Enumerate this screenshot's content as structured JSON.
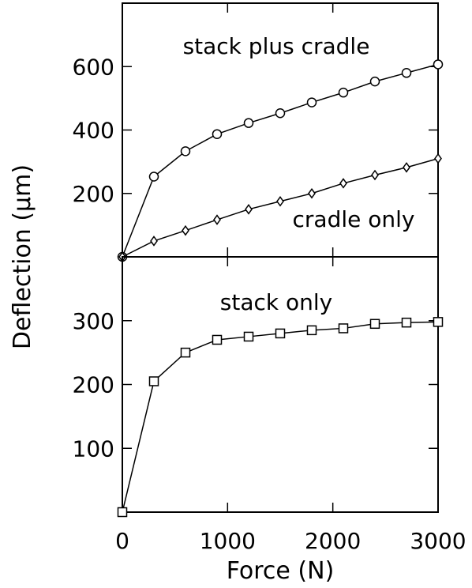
{
  "chart_data": [
    {
      "type": "line",
      "panel": "top",
      "xlim": [
        0,
        3000
      ],
      "ylim": [
        0,
        800
      ],
      "yticks": [
        200,
        400,
        600
      ],
      "ytick_labels": [
        "200",
        "400",
        "600"
      ],
      "grid": false,
      "annotations": [
        "stack plus cradle",
        "cradle only"
      ],
      "series": [
        {
          "annotation": "stack plus cradle",
          "marker": "circle",
          "x": [
            0,
            300,
            600,
            900,
            1200,
            1500,
            1800,
            2100,
            2400,
            2700,
            3000
          ],
          "y": [
            0,
            253,
            333,
            387,
            422,
            453,
            487,
            518,
            553,
            580,
            607
          ]
        },
        {
          "annotation": "cradle only",
          "marker": "diamond",
          "x": [
            0,
            300,
            600,
            900,
            1200,
            1500,
            1800,
            2100,
            2400,
            2700,
            3000
          ],
          "y": [
            0,
            50,
            83,
            117,
            150,
            175,
            200,
            232,
            258,
            282,
            310
          ]
        }
      ]
    },
    {
      "type": "line",
      "panel": "bottom",
      "xlim": [
        0,
        3000
      ],
      "ylim": [
        0,
        400
      ],
      "yticks": [
        100,
        200,
        300
      ],
      "ytick_labels": [
        "100",
        "200",
        "300"
      ],
      "xticks": [
        0,
        1000,
        2000,
        3000
      ],
      "xtick_labels": [
        "0",
        "1000",
        "2000",
        "3000"
      ],
      "grid": false,
      "annotations": [
        "stack only"
      ],
      "series": [
        {
          "annotation": "stack only",
          "marker": "square",
          "x": [
            0,
            300,
            600,
            900,
            1200,
            1500,
            1800,
            2100,
            2400,
            2700,
            3000
          ],
          "y": [
            0,
            205,
            250,
            270,
            275,
            280,
            285,
            288,
            295,
            297,
            298
          ]
        }
      ]
    }
  ],
  "labels": {
    "xlabel": "Force (N)",
    "ylabel": "Deflection (μm)"
  }
}
